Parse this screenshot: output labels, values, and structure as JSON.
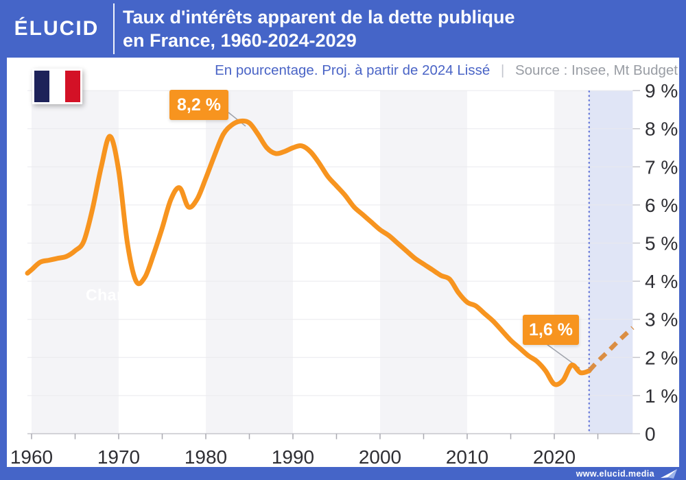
{
  "header": {
    "logo": "ÉLUCID",
    "title_line1": "Taux d'intérêts apparent de la dette publique",
    "title_line2": "en France, 1960-2024-2029"
  },
  "subtitle": {
    "note": "En pourcentage. Proj. à partir de 2024 Lissé",
    "separator": "|",
    "source": "Source : Insee, Mt Budget"
  },
  "watermark": "Chart",
  "footer": {
    "site": "www.elucid.media"
  },
  "flag": {
    "colors": [
      "#1d2259",
      "#ffffff",
      "#d31126"
    ]
  },
  "colors": {
    "brand_blue": "#4565c8",
    "line_orange": "#f7941f",
    "projection_orange": "#db8e43",
    "projection_band": "rgba(70,101,200,0.17)",
    "dotted_line": "#6b7cd9",
    "decade_band": "#f4f4f7",
    "gridline": "#e9e9ed",
    "axis": "#c6c6cc",
    "tick": "#a9a9b0",
    "label": "#2e2e33",
    "connector": "#9fa3ab"
  },
  "chart_data": {
    "type": "line",
    "title": "Taux d'intérêts apparent de la dette publique en France, 1960-2024-2029",
    "unit": "%",
    "xlim": [
      1960,
      2029
    ],
    "ylim": [
      0,
      9
    ],
    "grid": "horizontal",
    "y_axis_side": "right",
    "x_tick_labels": [
      1960,
      1970,
      1980,
      1990,
      2000,
      2010,
      2020
    ],
    "x_tick_marks": [
      1960,
      1965,
      1970,
      1975,
      1980,
      1985,
      1990,
      1995,
      2000,
      2005,
      2010,
      2015,
      2020,
      2025
    ],
    "y_ticks": [
      {
        "label": "9 %",
        "value": 9
      },
      {
        "label": "8 %",
        "value": 8
      },
      {
        "label": "7 %",
        "value": 7
      },
      {
        "label": "6 %",
        "value": 6
      },
      {
        "label": "5 %",
        "value": 5
      },
      {
        "label": "4 %",
        "value": 4
      },
      {
        "label": "3 %",
        "value": 3
      },
      {
        "label": "2 %",
        "value": 2
      },
      {
        "label": "1 %",
        "value": 1
      },
      {
        "label": "0",
        "value": 0
      }
    ],
    "decade_shading_starts": [
      1960,
      1980,
      2000,
      2020
    ],
    "projection": {
      "start": 2024,
      "end": 2029
    },
    "series": [
      {
        "name": "taux_observe",
        "style": "solid",
        "years": {
          "start": 1960,
          "end": 2024
        },
        "values": [
          4.3,
          4.5,
          4.55,
          4.6,
          4.65,
          4.8,
          5.05,
          5.9,
          7.0,
          7.8,
          6.9,
          5.0,
          4.0,
          4.1,
          4.7,
          5.4,
          6.15,
          6.45,
          5.95,
          6.15,
          6.7,
          7.3,
          7.85,
          8.1,
          8.2,
          8.15,
          7.85,
          7.5,
          7.35,
          7.4,
          7.5,
          7.55,
          7.4,
          7.1,
          6.75,
          6.5,
          6.25,
          5.95,
          5.75,
          5.55,
          5.35,
          5.2,
          5.0,
          4.8,
          4.6,
          4.45,
          4.3,
          4.15,
          4.05,
          3.7,
          3.45,
          3.35,
          3.15,
          2.95,
          2.7,
          2.45,
          2.25,
          2.05,
          1.9,
          1.65,
          1.3,
          1.4,
          1.8,
          1.6,
          1.65
        ]
      },
      {
        "name": "projection_lissee_2024_2029",
        "style": "dashed",
        "years": {
          "start": 2024,
          "end": 2029
        },
        "values": [
          1.65,
          1.9,
          2.12,
          2.35,
          2.57,
          2.78
        ]
      }
    ],
    "annotations": [
      {
        "label": "8,2 %",
        "year": 1984,
        "value": 8.2
      },
      {
        "label": "1,6 %",
        "year": 2023,
        "value": 1.6
      }
    ]
  }
}
